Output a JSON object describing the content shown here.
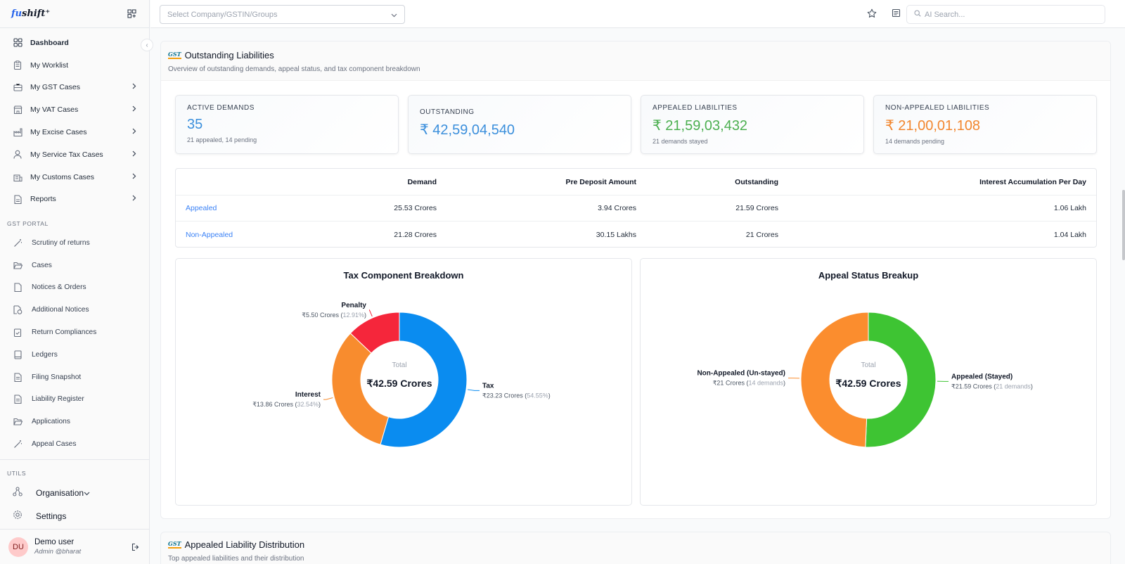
{
  "brand": {
    "logo_pre": "fu",
    "logo_post": "shift"
  },
  "sidebar": {
    "items": [
      {
        "label": "Dashboard"
      },
      {
        "label": "My Worklist"
      },
      {
        "label": "My GST Cases"
      },
      {
        "label": "My VAT Cases"
      },
      {
        "label": "My Excise Cases"
      },
      {
        "label": "My Service Tax Cases"
      },
      {
        "label": "My Customs Cases"
      },
      {
        "label": "Reports"
      }
    ],
    "gst_section": "GST PORTAL",
    "gst_items": [
      {
        "label": "Scrutiny of returns"
      },
      {
        "label": "Cases"
      },
      {
        "label": "Notices & Orders"
      },
      {
        "label": "Additional Notices"
      },
      {
        "label": "Return Compliances"
      },
      {
        "label": "Ledgers"
      },
      {
        "label": "Filing Snapshot"
      },
      {
        "label": "Liability Register"
      },
      {
        "label": "Applications"
      },
      {
        "label": "Appeal Cases"
      }
    ],
    "utils_section": "UTILS",
    "organisation": "Organisation",
    "settings": "Settings",
    "user": {
      "initials": "DU",
      "name": "Demo user",
      "role": "Admin @bharat"
    }
  },
  "topbar": {
    "company_placeholder": "Select Company/GSTIN/Groups",
    "search_placeholder": "AI Search..."
  },
  "liabilities": {
    "title": "Outstanding Liabilities",
    "subtitle": "Overview of outstanding demands, appeal status, and tax component breakdown",
    "cards": [
      {
        "label": "ACTIVE DEMANDS",
        "value": "35",
        "note": "21 appealed, 14 pending",
        "color": "#3b8fdc"
      },
      {
        "label": "OUTSTANDING",
        "value": "₹ 42,59,04,540",
        "note": "",
        "color": "#3b8fdc"
      },
      {
        "label": "APPEALED LIABILITIES",
        "value": "₹ 21,59,03,432",
        "note": "21 demands stayed",
        "color": "#4caf50"
      },
      {
        "label": "NON-APPEALED LIABILITIES",
        "value": "₹ 21,00,01,108",
        "note": "14 demands pending",
        "color": "#f2862e"
      }
    ],
    "table": {
      "headers": [
        "",
        "Demand",
        "Pre Deposit Amount",
        "Outstanding",
        "Interest Accumulation Per Day"
      ],
      "rows": [
        [
          "Appealed",
          "25.53 Crores",
          "3.94 Crores",
          "21.59 Crores",
          "1.06 Lakh"
        ],
        [
          "Non-Appealed",
          "21.28 Crores",
          "30.15 Lakhs",
          "21 Crores",
          "1.04 Lakh"
        ]
      ]
    }
  },
  "chart_data": [
    {
      "type": "pie",
      "title": "Tax Component Breakdown",
      "center_label": "Total",
      "center_value": "₹42.59 Crores",
      "slices": [
        {
          "name": "Tax",
          "value": 23.23,
          "amount": "₹23.23 Crores",
          "pct": "54.55%",
          "color": "#0a8cf0"
        },
        {
          "name": "Interest",
          "value": 13.86,
          "amount": "₹13.86 Crores",
          "pct": "32.54%",
          "color": "#f88c2e"
        },
        {
          "name": "Penalty",
          "value": 5.5,
          "amount": "₹5.50 Crores",
          "pct": "12.91%",
          "color": "#f5263b"
        }
      ]
    },
    {
      "type": "pie",
      "title": "Appeal Status Breakup",
      "center_label": "Total",
      "center_value": "₹42.59 Crores",
      "slices": [
        {
          "name": "Appealed (Stayed)",
          "value": 21.59,
          "amount": "₹21.59 Crores",
          "pct": "21 demands",
          "color": "#3ec433"
        },
        {
          "name": "Non-Appealed (Un-stayed)",
          "value": 21.0,
          "amount": "₹21 Crores",
          "pct": "14 demands",
          "color": "#fb8d2e"
        }
      ]
    }
  ],
  "distribution": {
    "title": "Appealed Liability Distribution",
    "subtitle": "Top appealed liabilities and their distribution"
  }
}
